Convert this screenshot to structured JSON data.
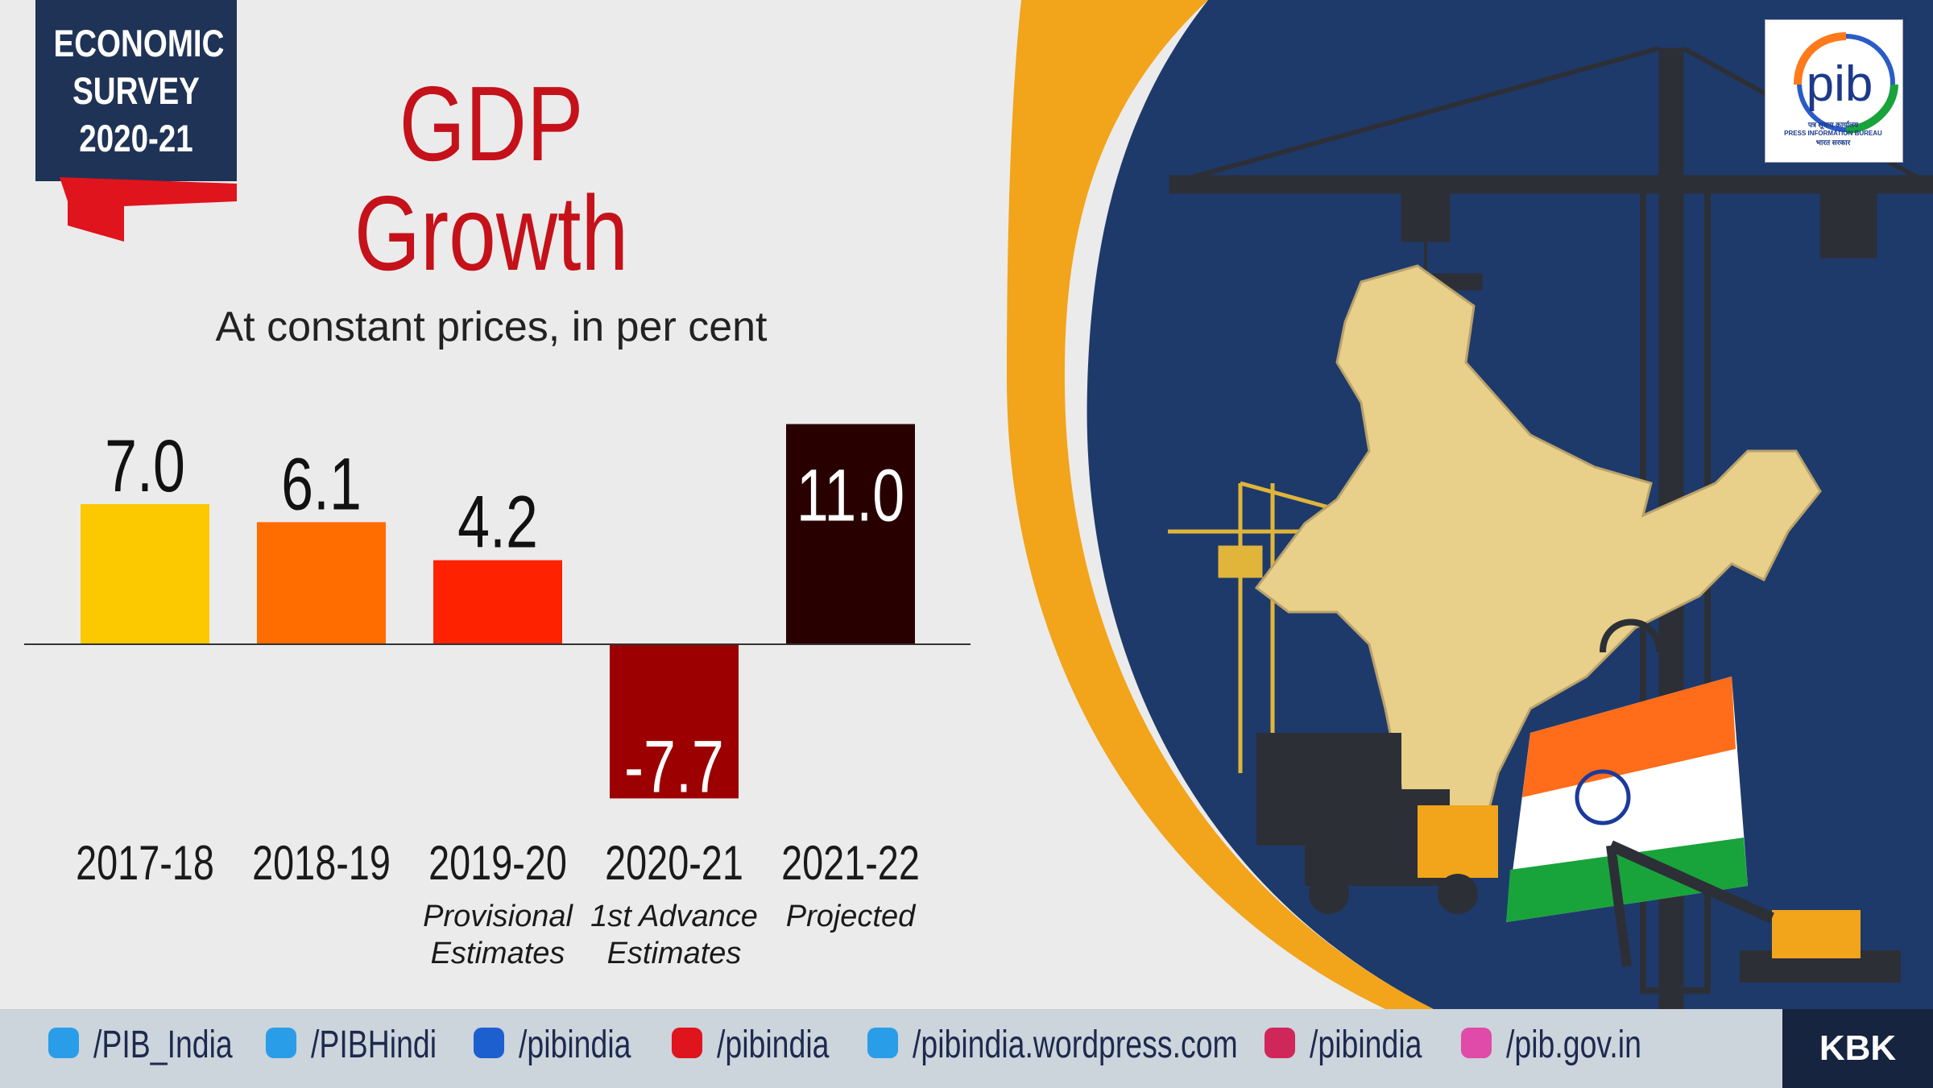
{
  "badge": {
    "line1": "ECONOMIC",
    "line2": "SURVEY",
    "line3": "2020-21"
  },
  "header": {
    "title_line1": "GDP",
    "title_line2": "Growth",
    "subtitle": "At constant prices, in per cent"
  },
  "colors": {
    "bar_colors": [
      "#fcc800",
      "#ff6c00",
      "#ff2200",
      "#9c0000",
      "#280000"
    ],
    "navy": "#1e3a6b",
    "orange_arc": "#f2a41a"
  },
  "chart_data": {
    "type": "bar",
    "title": "GDP Growth",
    "subtitle": "At constant prices, in per cent",
    "categories": [
      "2017-18",
      "2018-19",
      "2019-20",
      "2020-21",
      "2021-22"
    ],
    "category_notes": [
      [
        "",
        ""
      ],
      [
        "",
        ""
      ],
      [
        "Provisional",
        "Estimates"
      ],
      [
        "1st Advance",
        "Estimates"
      ],
      [
        "Projected",
        ""
      ]
    ],
    "values": [
      7.0,
      6.1,
      4.2,
      -7.7,
      11.0
    ],
    "value_labels": [
      "7.0",
      "6.1",
      "4.2",
      "-7.7",
      "11.0"
    ],
    "ylim": [
      -7.7,
      11.0
    ],
    "xlabel": "",
    "ylabel": "",
    "grid": false
  },
  "logo": {
    "text": "pib",
    "line1": "पत्र सूचना कार्यालय",
    "line2": "PRESS INFORMATION BUREAU",
    "line3": "भारत सरकार"
  },
  "footer": {
    "socials": [
      {
        "icon": "twitter-icon",
        "label": "/PIB_India"
      },
      {
        "icon": "twitter-icon",
        "label": "/PIBHindi"
      },
      {
        "icon": "facebook-icon",
        "label": "/pibindia"
      },
      {
        "icon": "youtube-icon",
        "label": "/pibindia"
      },
      {
        "icon": "wordpress-icon",
        "label": "/pibindia.wordpress.com"
      },
      {
        "icon": "instagram-icon",
        "label": "/pibindia"
      },
      {
        "icon": "web-icon",
        "label": "/pib.gov.in"
      }
    ],
    "credit": "KBK"
  }
}
